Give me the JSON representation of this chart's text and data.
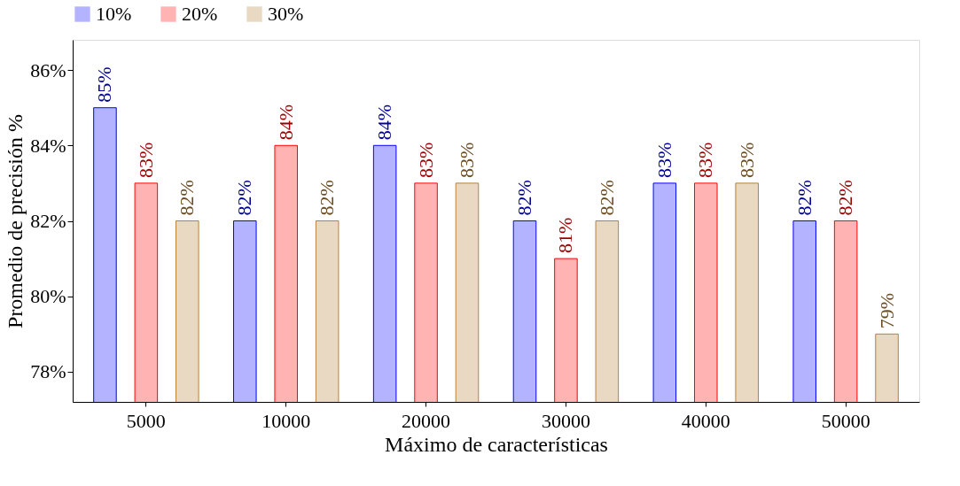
{
  "chart_data": {
    "type": "bar",
    "xlabel": "Máximo de características",
    "ylabel": "Promedio de precisión %",
    "categories": [
      "5000",
      "10000",
      "20000",
      "30000",
      "40000",
      "50000"
    ],
    "series": [
      {
        "name": "10%",
        "color": "#b3b3ff",
        "values": [
          85,
          82,
          84,
          82,
          83,
          82
        ],
        "value_labels": [
          "85%",
          "82%",
          "84%",
          "82%",
          "83%",
          "82%"
        ]
      },
      {
        "name": "20%",
        "color": "#ffb3b3",
        "values": [
          83,
          84,
          83,
          81,
          83,
          82
        ],
        "value_labels": [
          "83%",
          "84%",
          "83%",
          "81%",
          "83%",
          "82%"
        ]
      },
      {
        "name": "30%",
        "color": "#e9d9c3",
        "values": [
          82,
          82,
          83,
          82,
          83,
          79
        ],
        "value_labels": [
          "82%",
          "82%",
          "83%",
          "82%",
          "83%",
          "79%"
        ]
      }
    ],
    "ylim": [
      77.2,
      86.8
    ],
    "yticks": [
      {
        "value": 78,
        "label": "78%"
      },
      {
        "value": 80,
        "label": "80%"
      },
      {
        "value": 82,
        "label": "82%"
      },
      {
        "value": 84,
        "label": "84%"
      },
      {
        "value": 86,
        "label": "86%"
      }
    ],
    "grid": false,
    "legend": "top"
  }
}
